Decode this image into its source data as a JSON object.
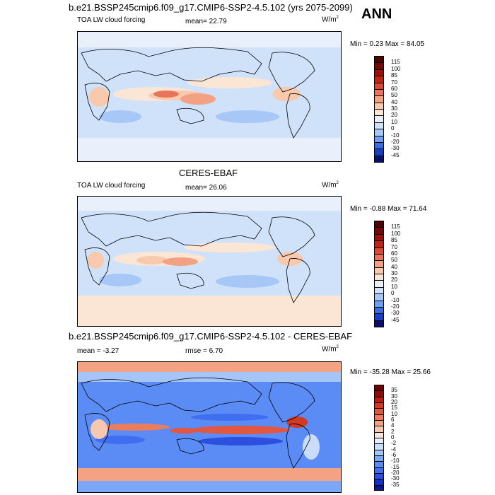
{
  "header": {
    "case_title": "b.e21.BSSP245cmip6.f09_g17.CMIP6-SSP2-4.5.102 (yrs 2075-2099)",
    "season": "ANN"
  },
  "panels": [
    {
      "variable": "TOA LW cloud forcing",
      "mean_label": "mean=",
      "mean_value": "22.79",
      "units": "W/m",
      "units_sup": "2",
      "minmax": "Min =  0.23 Max =  84.05"
    },
    {
      "title": "CERES-EBAF",
      "variable": "TOA LW cloud forcing",
      "mean_label": "mean=",
      "mean_value": "26.06",
      "units": "W/m",
      "units_sup": "2",
      "minmax": "Min =  -0.88 Max =  71.64"
    },
    {
      "title": "b.e21.BSSP245cmip6.f09_g17.CMIP6-SSP2-4.5.102 - CERES-EBAF",
      "mean_label": "mean =",
      "mean_value": "-3.27",
      "rmse_label": "rmse =",
      "rmse_value": "6.70",
      "units": "W/m",
      "units_sup": "2",
      "minmax": "Min =  -35.28 Max =  25.66"
    }
  ],
  "chart_data": [
    {
      "type": "heatmap",
      "title": "TOA LW cloud forcing",
      "mean": 22.79,
      "min": 0.23,
      "max": 84.05,
      "units": "W/m2",
      "levels": [
        -45,
        -30,
        -20,
        -10,
        0,
        10,
        20,
        30,
        40,
        50,
        60,
        70,
        85,
        100,
        115
      ],
      "colors": [
        "#08106b",
        "#1a3fbf",
        "#3a6ee0",
        "#6f9ff2",
        "#a7c8f6",
        "#cfe2fa",
        "#e9f0fb",
        "#fbe6d6",
        "#f8c9ad",
        "#f2a282",
        "#e8755b",
        "#d84a36",
        "#bd2416",
        "#99110a",
        "#700a05",
        "#4a0500"
      ]
    },
    {
      "type": "heatmap",
      "title": "CERES-EBAF TOA LW cloud forcing",
      "mean": 26.06,
      "min": -0.88,
      "max": 71.64,
      "units": "W/m2",
      "levels": [
        -45,
        -30,
        -20,
        -10,
        0,
        10,
        20,
        30,
        40,
        50,
        60,
        70,
        85,
        100,
        115
      ],
      "colors": [
        "#08106b",
        "#1a3fbf",
        "#3a6ee0",
        "#6f9ff2",
        "#a7c8f6",
        "#cfe2fa",
        "#e9f0fb",
        "#fbe6d6",
        "#f8c9ad",
        "#f2a282",
        "#e8755b",
        "#d84a36",
        "#bd2416",
        "#99110a",
        "#700a05",
        "#4a0500"
      ]
    },
    {
      "type": "heatmap",
      "title": "b.e21.BSSP245cmip6.f09_g17.CMIP6-SSP2-4.5.102 - CERES-EBAF",
      "mean": -3.27,
      "rmse": 6.7,
      "min": -35.28,
      "max": 25.66,
      "units": "W/m2",
      "levels": [
        -35,
        -30,
        -20,
        -15,
        -10,
        -6,
        -4,
        -2,
        0,
        2,
        4,
        6,
        10,
        15,
        20,
        30,
        35
      ],
      "colors": [
        "#0a1a8c",
        "#1530c4",
        "#2c4fe0",
        "#3f6ff0",
        "#5b8cf5",
        "#7ca7f7",
        "#a5c4f8",
        "#c9dcfa",
        "#e6eefb",
        "#fbe4d8",
        "#f8c7b0",
        "#f3a283",
        "#ec7c5e",
        "#e2573f",
        "#d13a25",
        "#b51e10",
        "#8f0c06",
        "#6a0302"
      ]
    }
  ]
}
